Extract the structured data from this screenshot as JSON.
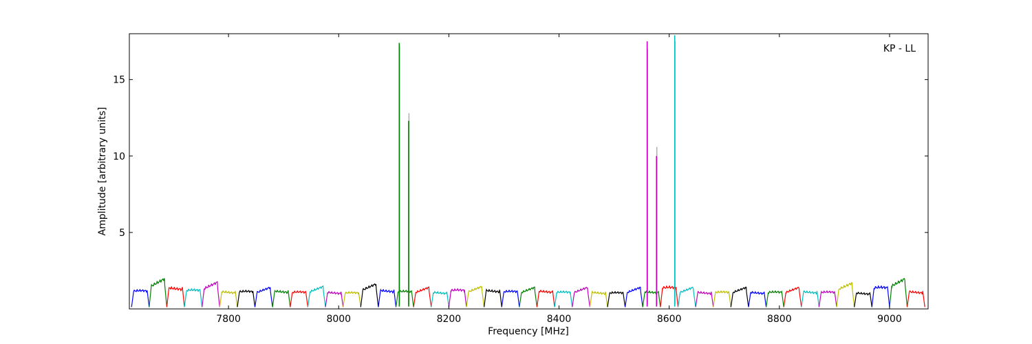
{
  "chart_data": {
    "type": "line",
    "title": "",
    "annotation": "KP - LL",
    "xlabel": "Frequency [MHz]",
    "ylabel": "Amplitude [arbitrary units]",
    "xlim": [
      7620,
      9070
    ],
    "ylim": [
      0,
      18
    ],
    "xticks": [
      7800,
      8000,
      8200,
      8400,
      8600,
      8800,
      9000
    ],
    "yticks": [
      5,
      10,
      15
    ],
    "grid": false,
    "legend": "none",
    "channel_width_mhz": 32,
    "channel_start_mhz": 7624,
    "channel_count": 45,
    "channel_color_cycle": [
      "#0000ff",
      "#008000",
      "#ff0000",
      "#00bfbf",
      "#bf00bf",
      "#bfbf00",
      "#000000"
    ],
    "channel_peak_amplitudes": [
      1.25,
      1.65,
      1.5,
      1.3,
      1.45,
      1.2,
      1.2,
      1.15,
      1.25,
      1.15,
      1.2,
      1.15,
      1.1,
      1.35,
      1.3,
      1.2,
      1.15,
      1.15,
      1.3,
      1.2,
      1.3,
      1.2,
      1.15,
      1.25,
      1.15,
      1.15,
      1.15,
      1.1,
      1.15,
      1.2,
      1.5,
      1.15,
      1.15,
      1.15,
      1.15,
      1.15,
      1.15,
      1.15,
      1.2,
      1.15,
      1.4,
      1.1,
      1.5,
      1.65,
      1.2
    ],
    "spikes": [
      {
        "x": 8110,
        "y": 17.4,
        "color": "#008000",
        "ghost_y": 17.2
      },
      {
        "x": 8127,
        "y": 12.3,
        "color": "#008000",
        "ghost_y": 12.8
      },
      {
        "x": 8560,
        "y": 17.5,
        "color": "#bf00bf",
        "ghost_y": 17.0
      },
      {
        "x": 8577,
        "y": 10.0,
        "color": "#bf00bf",
        "ghost_y": 10.6
      },
      {
        "x": 8610,
        "y": 17.9,
        "color": "#00bfbf",
        "ghost_y": 17.5
      }
    ]
  }
}
